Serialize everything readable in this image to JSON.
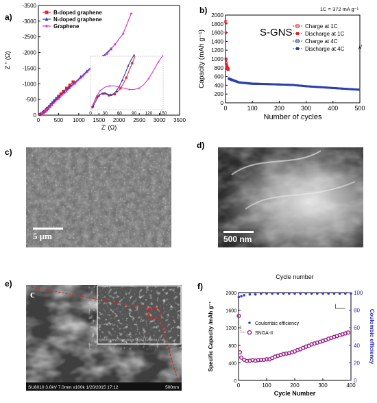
{
  "panels": {
    "a": "a)",
    "b": "b)",
    "c": "c)",
    "d": "d)",
    "e": "e)",
    "f": "f)"
  },
  "chart_data": [
    {
      "panel": "a",
      "type": "scatter",
      "xlabel": "Z' (Ω)",
      "ylabel": "Z '' (Ω)",
      "xlim": [
        0,
        3500
      ],
      "ylim": [
        0,
        -3500
      ],
      "xticks": [
        "0",
        "500",
        "1000",
        "1500",
        "2000",
        "2500",
        "3000",
        "3500"
      ],
      "yticks": [
        "0",
        "-500",
        "-1000",
        "-1500",
        "-2000",
        "-2500",
        "-3000",
        "-3500"
      ],
      "legend_position": "top-left",
      "series": [
        {
          "name": "B-doped graphene",
          "color": "#e8202a",
          "marker": "square",
          "x": [
            40,
            80,
            120,
            160,
            200,
            240,
            280,
            320,
            360,
            400,
            450,
            500,
            560,
            620,
            700,
            780,
            860
          ],
          "y": [
            -20,
            -40,
            -80,
            -120,
            -170,
            -220,
            -280,
            -340,
            -400,
            -460,
            -530,
            -600,
            -680,
            -760,
            -860,
            -960,
            -1060
          ]
        },
        {
          "name": "N-doped graphene",
          "color": "#2a3fb0",
          "marker": "triangle",
          "x": [
            60,
            120,
            200,
            300,
            400,
            520,
            640,
            760,
            900,
            1050,
            1200,
            1400,
            1600,
            1800
          ],
          "y": [
            -60,
            -120,
            -220,
            -340,
            -460,
            -600,
            -740,
            -880,
            -1040,
            -1220,
            -1400,
            -1640,
            -1880,
            -2120
          ]
        },
        {
          "name": "Graphene",
          "color": "#e030d0",
          "marker": "star",
          "x": [
            80,
            200,
            320,
            500,
            700,
            900,
            1100,
            1300,
            1500,
            1700,
            1900,
            2100,
            2300
          ],
          "y": [
            -60,
            -180,
            -320,
            -520,
            -760,
            -1000,
            -1240,
            -1480,
            -1720,
            -1960,
            -2260,
            -2600,
            -3240
          ]
        }
      ],
      "inset": {
        "xlim": [
          0,
          150
        ],
        "ylim": [
          0,
          90
        ],
        "xticks": [
          "0",
          "30",
          "60",
          "90",
          "120",
          "150"
        ],
        "series": [
          {
            "name": "B-doped graphene",
            "color": "#e8202a",
            "x": [
              4,
              8,
              14,
              20,
              26,
              32,
              38,
              44,
              50,
              56,
              62,
              68,
              74,
              80,
              86,
              92
            ],
            "y": [
              4,
              14,
              22,
              26,
              27,
              26,
              24,
              24,
              26,
              30,
              36,
              44,
              54,
              66,
              78,
              90
            ]
          },
          {
            "name": "N-doped graphene",
            "color": "#2a3fb0",
            "x": [
              6,
              12,
              18,
              24,
              30,
              36,
              42,
              48,
              54,
              60,
              66,
              72,
              78,
              84,
              90
            ],
            "y": [
              6,
              16,
              24,
              28,
              28,
              26,
              25,
              27,
              32,
              40,
              50,
              62,
              74,
              84,
              92
            ]
          },
          {
            "name": "Graphene",
            "color": "#e030d0",
            "x": [
              5,
              12,
              20,
              30,
              40,
              50,
              60,
              70,
              80,
              90,
              100,
              110,
              120,
              130,
              140,
              150
            ],
            "y": [
              8,
              22,
              32,
              38,
              40,
              40,
              38,
              36,
              34,
              34,
              36,
              42,
              52,
              66,
              80,
              92
            ]
          }
        ]
      }
    },
    {
      "panel": "b",
      "type": "scatter",
      "xlabel": "Number of cycles",
      "ylabel": "Capacity (mAh g⁻¹)",
      "xlim": [
        0,
        500
      ],
      "ylim": [
        0,
        2000
      ],
      "xticks": [
        "0",
        "100",
        "200",
        "300",
        "400",
        "500"
      ],
      "yticks": [
        "0",
        "200",
        "400",
        "600",
        "800",
        "1000",
        "1200",
        "1400",
        "1600",
        "1800",
        "2000"
      ],
      "annotation_main": "S-GNS",
      "annotation_rate": "1C = 372 mA g⁻¹",
      "legend_position": "top-right",
      "series": [
        {
          "name": "Charge at 1C",
          "color": "#e8202a",
          "marker": "open-square",
          "x": [
            1,
            2,
            3,
            4,
            5,
            6,
            7,
            8,
            9,
            10
          ],
          "y": [
            1850,
            1000,
            900,
            850,
            820,
            800,
            790,
            780,
            770,
            760
          ]
        },
        {
          "name": "Discharge at 1C",
          "color": "#e8202a",
          "marker": "filled-square",
          "x": [
            1,
            2,
            3,
            4,
            5,
            6,
            7,
            8,
            9,
            10
          ],
          "y": [
            1600,
            950,
            880,
            840,
            810,
            790,
            780,
            770,
            760,
            750
          ]
        },
        {
          "name": "Charge at 4C",
          "color": "#2a3fb0",
          "marker": "open-square",
          "x": [
            12,
            50,
            100,
            150,
            200,
            250,
            300,
            350,
            400,
            450,
            500
          ],
          "y": [
            560,
            470,
            440,
            430,
            420,
            410,
            380,
            360,
            340,
            320,
            300
          ]
        },
        {
          "name": "Discharge at 4C",
          "color": "#2a3fb0",
          "marker": "filled-square",
          "x": [
            12,
            50,
            100,
            150,
            200,
            250,
            300,
            350,
            400,
            450,
            500
          ],
          "y": [
            540,
            460,
            430,
            425,
            415,
            405,
            375,
            355,
            335,
            315,
            295
          ]
        }
      ]
    },
    {
      "panel": "f",
      "type": "scatter",
      "title": "Cycle number",
      "xlabel": "Cycle Number",
      "ylabel": "Specific Capacity /mAh g⁻¹",
      "y2label": "Coulombic efficiency",
      "xlim": [
        0,
        400
      ],
      "ylim": [
        0,
        2000
      ],
      "y2lim": [
        0,
        100
      ],
      "xticks": [
        "0",
        "100",
        "200",
        "300",
        "400"
      ],
      "yticks": [
        "0",
        "200",
        "400",
        "600",
        "800",
        "1000",
        "1200",
        "1400",
        "1600",
        "1800",
        "2000"
      ],
      "y2ticks": [
        "0",
        "20",
        "40",
        "60",
        "80",
        "100"
      ],
      "legend_position": "middle-left",
      "series": [
        {
          "name": "Coulombic efficiency",
          "color": "#3a3ad0",
          "marker": "filled-circle",
          "axis": "y2",
          "x": [
            1,
            10,
            20,
            40,
            60,
            80,
            100,
            120,
            140,
            160,
            180,
            200,
            220,
            240,
            260,
            280,
            300,
            320,
            340,
            360,
            380,
            400
          ],
          "y": [
            95,
            96,
            97,
            98,
            98,
            99,
            99,
            99,
            99,
            99,
            99,
            99,
            99,
            99,
            99,
            99,
            99,
            99,
            99,
            99,
            99,
            99
          ]
        },
        {
          "name": "SNGA-II",
          "color": "#9a1a8a",
          "marker": "open-circle",
          "axis": "y",
          "x": [
            1,
            5,
            10,
            20,
            30,
            40,
            50,
            60,
            70,
            80,
            90,
            100,
            110,
            120,
            130,
            140,
            150,
            160,
            170,
            180,
            190,
            200,
            210,
            220,
            230,
            240,
            250,
            260,
            270,
            280,
            290,
            300,
            310,
            320,
            330,
            340,
            350,
            360,
            370,
            380,
            390
          ],
          "y": [
            1470,
            640,
            520,
            470,
            440,
            450,
            460,
            450,
            460,
            470,
            470,
            480,
            480,
            510,
            540,
            560,
            580,
            600,
            610,
            620,
            640,
            660,
            690,
            710,
            740,
            770,
            790,
            820,
            840,
            860,
            880,
            900,
            920,
            950,
            970,
            990,
            1010,
            1030,
            1050,
            1070,
            1090
          ]
        }
      ]
    }
  ],
  "images": {
    "c_scale": "5 μm",
    "d_scale": "500 nm",
    "e_letter": "c",
    "e_footer_left": "SU8010 3.0kV 7.0mm x100k 1/20/2015 17:12",
    "e_footer_right": "500nm",
    "e_inset_footer": "SU8010 3.0kV 7.0mm x10.0k SE(UL) 1/20/2015 17:08"
  }
}
